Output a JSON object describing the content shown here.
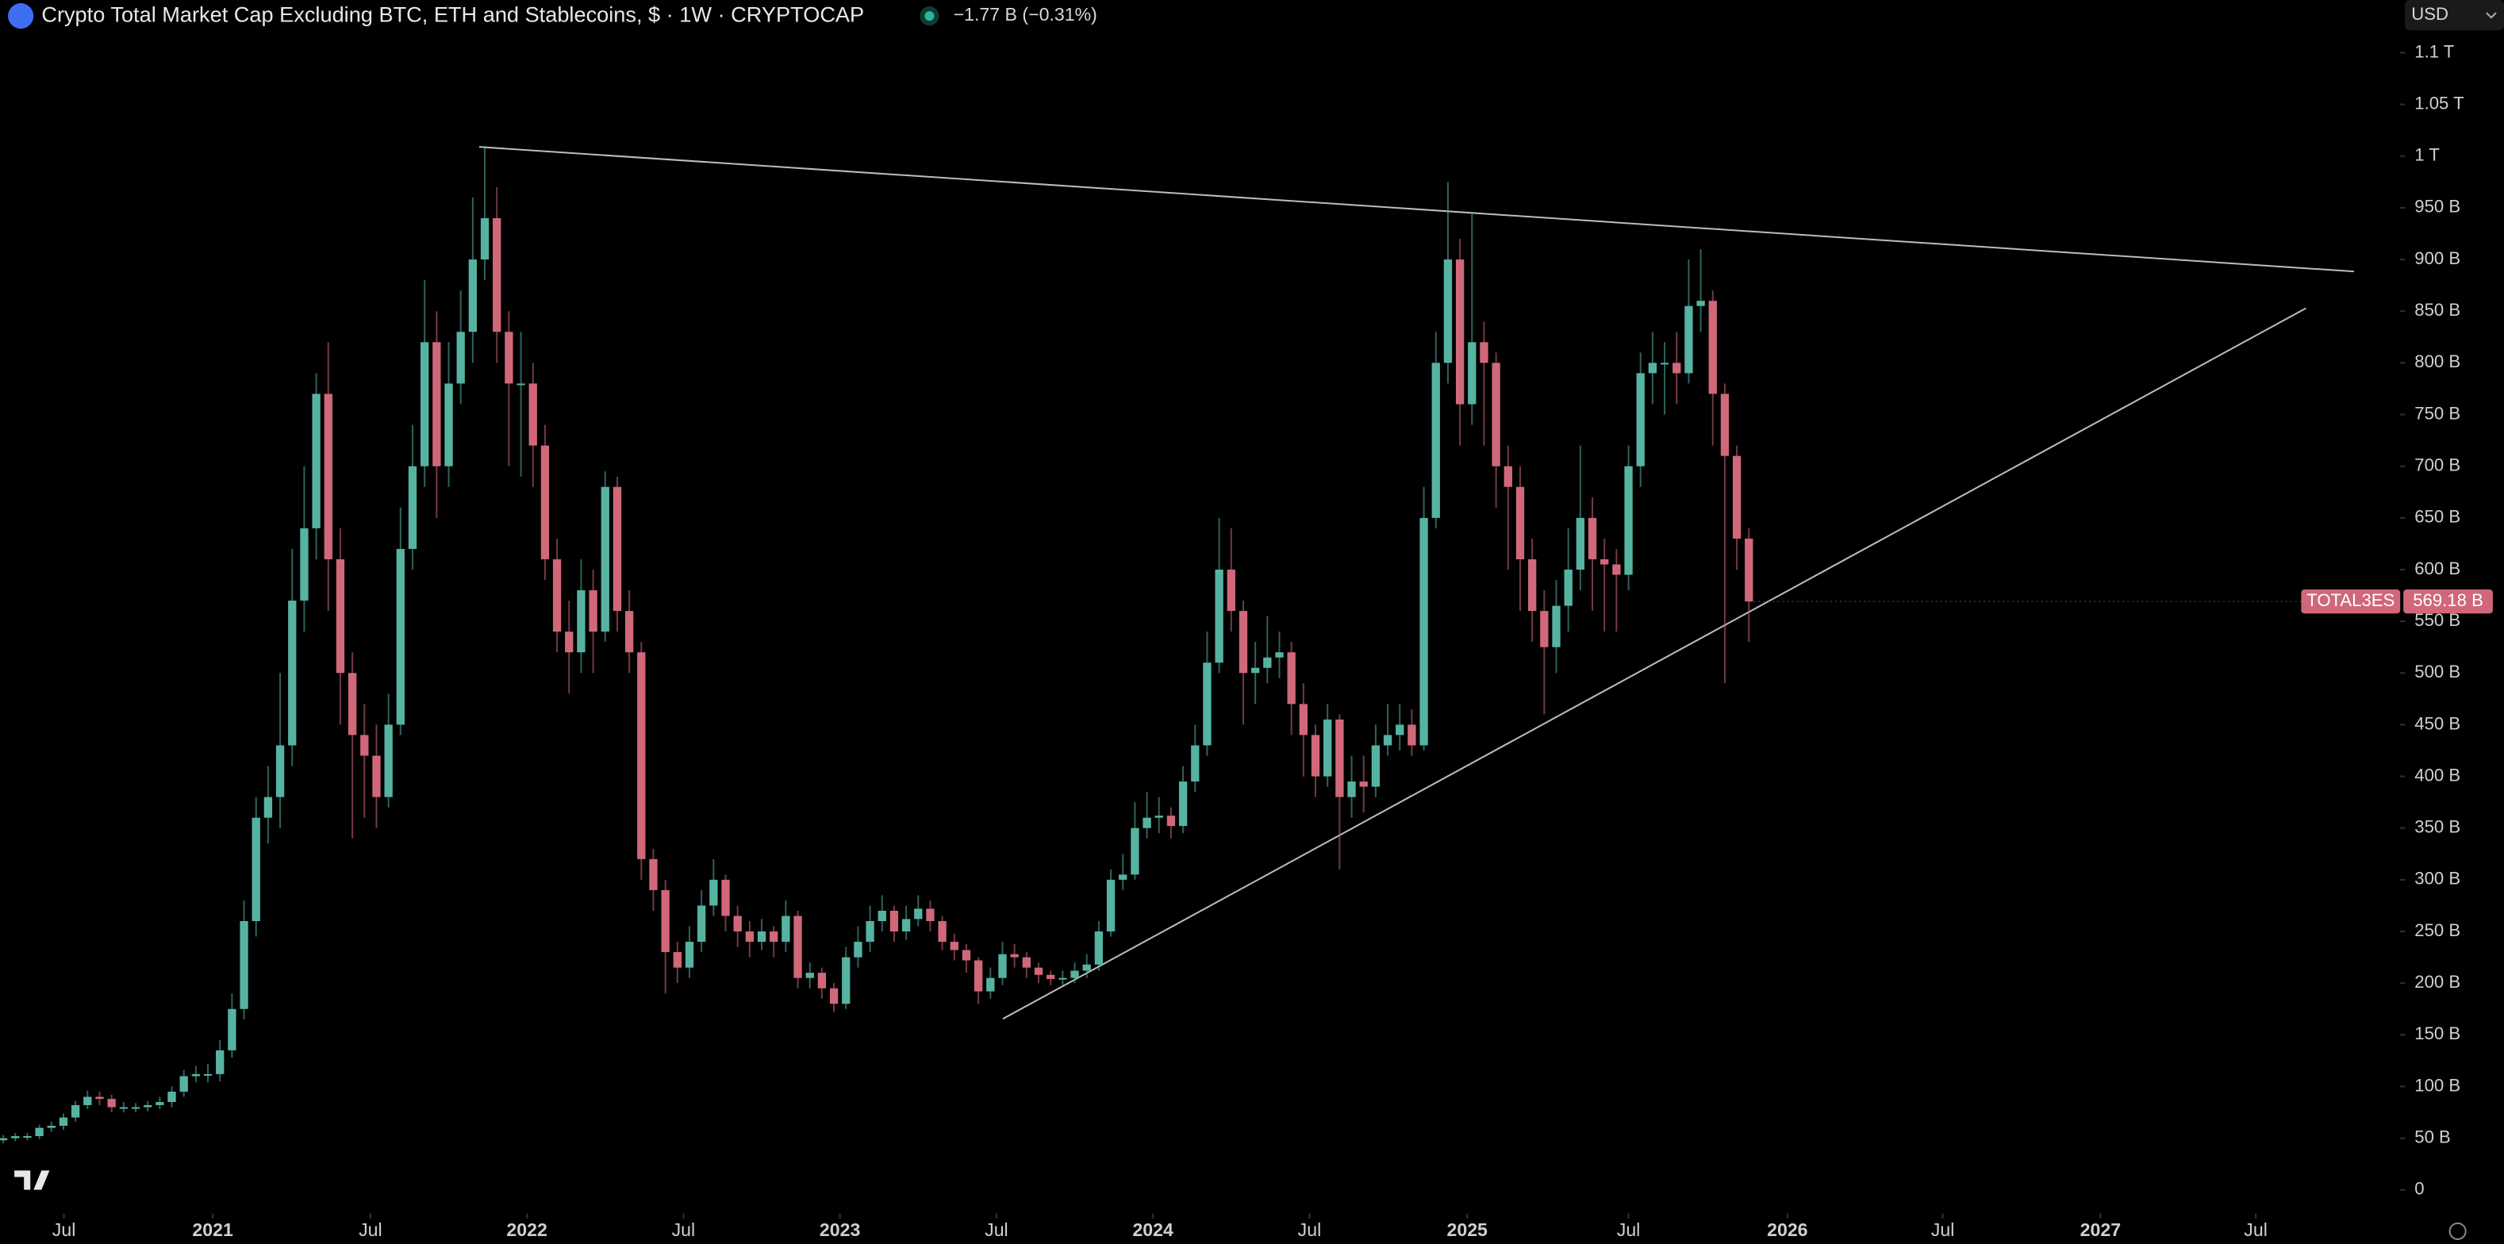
{
  "chart_data": {
    "type": "candlestick",
    "title": "Crypto Total Market Cap Excluding BTC, ETH and Stablecoins, $ · 1W · CRYPTOCAP",
    "subtitle": "−1.77 B (−0.31%)",
    "currency": "USD",
    "last_value_label": "569.18 B",
    "series": [
      {
        "name": "TOTAL3ES",
        "up_color": "#56b3a2",
        "down_color": "#d0687a",
        "open": [
          48,
          50,
          52,
          52,
          60,
          62,
          70,
          82,
          90,
          88,
          80,
          80,
          80,
          82,
          85,
          95,
          110,
          112,
          112,
          135,
          175,
          260,
          360,
          380,
          430,
          570,
          640,
          770,
          610,
          500,
          440,
          420,
          380,
          450,
          620,
          700,
          820,
          700,
          780,
          830,
          900,
          940,
          830,
          780,
          780,
          720,
          610,
          540,
          520,
          580,
          540,
          680,
          560,
          520,
          320,
          290,
          230,
          215,
          240,
          275,
          300,
          265,
          250,
          240,
          250,
          240,
          265,
          205,
          210,
          195,
          180,
          225,
          240,
          260,
          270,
          250,
          262,
          272,
          260,
          240,
          232,
          222,
          192,
          205,
          228,
          225,
          215,
          208,
          204,
          205,
          212,
          218,
          250,
          300,
          305,
          350,
          360,
          362,
          352,
          395,
          430,
          510,
          600,
          560,
          500,
          505,
          515,
          520,
          470,
          440,
          400,
          455,
          380,
          395,
          390,
          430,
          440,
          450,
          430,
          650,
          800,
          900,
          760,
          820,
          800,
          700,
          680,
          610,
          560,
          525,
          565,
          600,
          650,
          610,
          605,
          595,
          700,
          790,
          800,
          800,
          790,
          855,
          860,
          770,
          710,
          630
        ],
        "high": [
          53,
          55,
          55,
          63,
          66,
          74,
          86,
          96,
          95,
          92,
          85,
          84,
          86,
          90,
          100,
          116,
          120,
          122,
          145,
          190,
          280,
          380,
          410,
          500,
          620,
          700,
          790,
          820,
          640,
          520,
          470,
          450,
          480,
          660,
          740,
          880,
          850,
          820,
          870,
          960,
          1010,
          970,
          850,
          830,
          800,
          740,
          630,
          570,
          610,
          600,
          695,
          690,
          580,
          530,
          330,
          300,
          240,
          255,
          290,
          320,
          305,
          275,
          260,
          262,
          255,
          280,
          270,
          220,
          215,
          200,
          235,
          255,
          275,
          285,
          275,
          275,
          285,
          280,
          265,
          248,
          238,
          225,
          215,
          240,
          238,
          230,
          220,
          212,
          212,
          220,
          228,
          260,
          310,
          325,
          375,
          385,
          380,
          370,
          410,
          450,
          540,
          650,
          640,
          570,
          530,
          555,
          540,
          530,
          490,
          450,
          470,
          460,
          420,
          420,
          450,
          470,
          470,
          465,
          680,
          830,
          975,
          920,
          945,
          840,
          810,
          720,
          700,
          630,
          580,
          590,
          640,
          720,
          670,
          630,
          620,
          720,
          810,
          830,
          820,
          830,
          900,
          910,
          870,
          780,
          720,
          640
        ],
        "low": [
          45,
          47,
          48,
          49,
          56,
          58,
          66,
          78,
          82,
          75,
          75,
          75,
          76,
          78,
          80,
          90,
          104,
          104,
          105,
          128,
          165,
          245,
          335,
          350,
          410,
          540,
          610,
          560,
          450,
          340,
          360,
          350,
          370,
          440,
          600,
          680,
          650,
          680,
          760,
          800,
          880,
          800,
          700,
          690,
          680,
          590,
          520,
          480,
          500,
          500,
          530,
          540,
          500,
          300,
          270,
          190,
          200,
          205,
          230,
          265,
          250,
          235,
          225,
          232,
          225,
          230,
          195,
          195,
          185,
          172,
          175,
          215,
          230,
          250,
          240,
          242,
          255,
          250,
          232,
          222,
          210,
          180,
          185,
          198,
          215,
          205,
          200,
          198,
          198,
          200,
          205,
          212,
          245,
          290,
          300,
          340,
          345,
          340,
          345,
          385,
          420,
          500,
          540,
          450,
          470,
          490,
          495,
          440,
          400,
          380,
          390,
          310,
          360,
          365,
          380,
          420,
          425,
          420,
          425,
          640,
          780,
          720,
          740,
          720,
          660,
          600,
          560,
          530,
          460,
          500,
          540,
          580,
          560,
          540,
          540,
          580,
          680,
          760,
          750,
          760,
          780,
          830,
          720,
          490,
          600,
          530
        ],
        "close": [
          50,
          52,
          52,
          60,
          62,
          70,
          82,
          90,
          88,
          80,
          80,
          80,
          82,
          85,
          95,
          110,
          112,
          112,
          135,
          175,
          260,
          360,
          380,
          430,
          570,
          640,
          770,
          610,
          500,
          440,
          420,
          380,
          450,
          620,
          700,
          820,
          700,
          780,
          830,
          900,
          940,
          830,
          780,
          780,
          720,
          610,
          540,
          520,
          580,
          540,
          680,
          560,
          520,
          320,
          290,
          230,
          215,
          240,
          275,
          300,
          265,
          250,
          240,
          250,
          240,
          265,
          205,
          210,
          195,
          180,
          225,
          240,
          260,
          270,
          250,
          262,
          272,
          260,
          240,
          232,
          222,
          192,
          205,
          228,
          225,
          215,
          208,
          204,
          205,
          212,
          218,
          250,
          300,
          305,
          350,
          360,
          362,
          352,
          395,
          430,
          510,
          600,
          560,
          500,
          505,
          515,
          520,
          470,
          440,
          400,
          455,
          380,
          395,
          390,
          430,
          440,
          450,
          430,
          650,
          800,
          900,
          760,
          820,
          800,
          700,
          680,
          610,
          560,
          525,
          565,
          600,
          650,
          610,
          605,
          595,
          700,
          790,
          800,
          800,
          790,
          855,
          860,
          770,
          710,
          630,
          569.18
        ]
      }
    ],
    "xlim": [
      -0.27,
      199.1
    ],
    "xticks": [
      {
        "value": 5.04,
        "label": "Jul"
      },
      {
        "value": 17.4,
        "label": "2021"
      },
      {
        "value": 30.5,
        "label": "Jul"
      },
      {
        "value": 43.5,
        "label": "2022"
      },
      {
        "value": 56.5,
        "label": "Jul"
      },
      {
        "value": 69.5,
        "label": "2023"
      },
      {
        "value": 82.5,
        "label": "Jul"
      },
      {
        "value": 95.5,
        "label": "2024"
      },
      {
        "value": 108.5,
        "label": "Jul"
      },
      {
        "value": 121.6,
        "label": "2025"
      },
      {
        "value": 135,
        "label": "Jul"
      },
      {
        "value": 148.2,
        "label": "2026"
      },
      {
        "value": 161.1,
        "label": "Jul"
      },
      {
        "value": 174.2,
        "label": "2027"
      },
      {
        "value": 187.1,
        "label": "Jul"
      }
    ],
    "ylim": [
      -23,
      1151
    ],
    "yticks": [
      0,
      {
        "value": 50,
        "label": "50 B"
      },
      {
        "value": 100,
        "label": "100 B"
      },
      {
        "value": 150,
        "label": "150 B"
      },
      {
        "value": 200,
        "label": "200 B"
      },
      {
        "value": 250,
        "label": "250 B"
      },
      {
        "value": 300,
        "label": "300 B"
      },
      {
        "value": 350,
        "label": "350 B"
      },
      {
        "value": 400,
        "label": "400 B"
      },
      {
        "value": 450,
        "label": "450 B"
      },
      {
        "value": 500,
        "label": "500 B"
      },
      {
        "value": 550,
        "label": "550 B"
      },
      {
        "value": 600,
        "label": "600 B"
      },
      {
        "value": 650,
        "label": "650 B"
      },
      {
        "value": 700,
        "label": "700 B"
      },
      {
        "value": 750,
        "label": "750 B"
      },
      {
        "value": 800,
        "label": "800 B"
      },
      {
        "value": 850,
        "label": "850 B"
      },
      {
        "value": 900,
        "label": "900 B"
      },
      {
        "value": 950,
        "label": "950 B"
      },
      {
        "value": 1000,
        "label": "1 T"
      },
      {
        "value": 1050,
        "label": "1.05 T"
      },
      {
        "value": 1100,
        "label": "1.1 T"
      }
    ]
  }
}
